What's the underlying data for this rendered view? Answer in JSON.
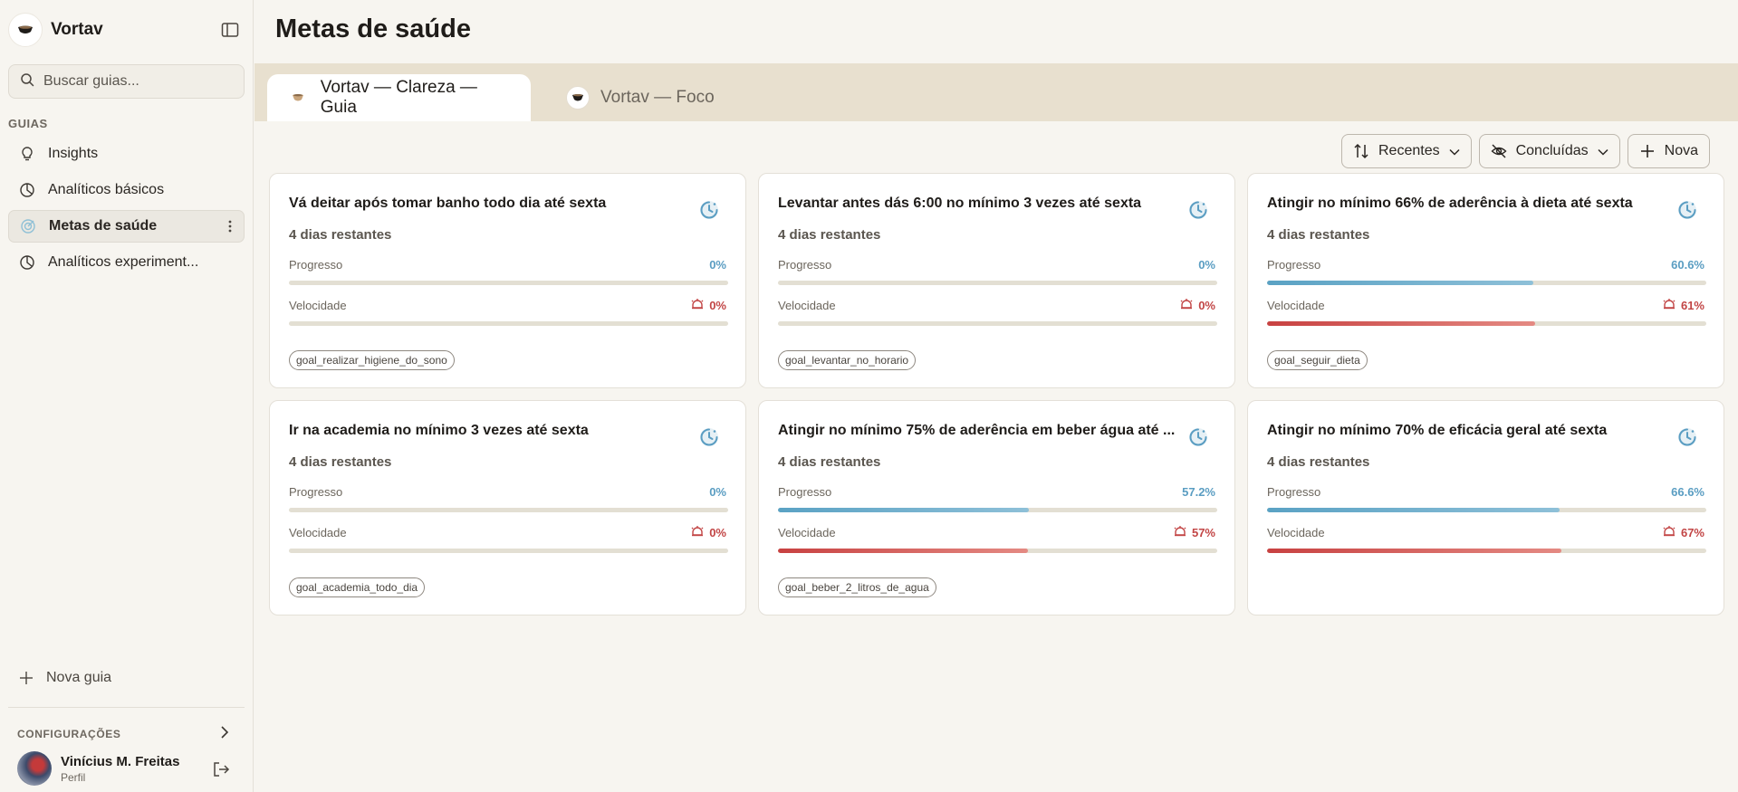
{
  "app": {
    "name": "Vortav"
  },
  "sidebar": {
    "search_placeholder": "Buscar guias...",
    "section_label": "GUIAS",
    "items": [
      {
        "label": "Insights",
        "icon": "lightbulb-icon"
      },
      {
        "label": "Analíticos básicos",
        "icon": "pie-chart-icon"
      },
      {
        "label": "Metas de saúde",
        "icon": "target-icon",
        "active": true
      },
      {
        "label": "Analíticos experiment...",
        "icon": "pie-chart-icon"
      }
    ],
    "new_guide_label": "Nova guia",
    "config_label": "CONFIGURAÇÕES",
    "profile": {
      "name": "Vinícius M. Freitas",
      "subtitle": "Perfil"
    }
  },
  "main": {
    "title": "Metas de saúde",
    "tabs": [
      {
        "label": "Vortav — Clareza — Guia",
        "active": true
      },
      {
        "label": "Vortav — Foco",
        "active": false
      }
    ],
    "toolbar": {
      "sort_label": "Recentes",
      "filter_label": "Concluídas",
      "new_label": "Nova"
    },
    "progress_label": "Progresso",
    "velocity_label": "Velocidade",
    "colors": {
      "progress": "#5a9dc2",
      "velocity": "#c24545",
      "tab_bar": "#e8e0cf"
    },
    "cards": [
      {
        "title": "Vá deitar após tomar banho todo dia até sexta",
        "days": "4 dias restantes",
        "progress": 0,
        "progress_text": "0%",
        "velocity": 0,
        "velocity_text": "0%",
        "tag": "goal_realizar_higiene_do_sono"
      },
      {
        "title": "Levantar antes dás 6:00 no mínimo 3 vezes até sexta",
        "days": "4 dias restantes",
        "progress": 0,
        "progress_text": "0%",
        "velocity": 0,
        "velocity_text": "0%",
        "tag": "goal_levantar_no_horario"
      },
      {
        "title": "Atingir no mínimo 66% de aderência à dieta até sexta",
        "days": "4 dias restantes",
        "progress": 60.6,
        "progress_text": "60.6%",
        "velocity": 61,
        "velocity_text": "61%",
        "tag": "goal_seguir_dieta"
      },
      {
        "title": "Ir na academia no mínimo 3 vezes até sexta",
        "days": "4 dias restantes",
        "progress": 0,
        "progress_text": "0%",
        "velocity": 0,
        "velocity_text": "0%",
        "tag": "goal_academia_todo_dia"
      },
      {
        "title": "Atingir no mínimo 75% de aderência em beber água até ...",
        "days": "4 dias restantes",
        "progress": 57.2,
        "progress_text": "57.2%",
        "velocity": 57,
        "velocity_text": "57%",
        "tag": "goal_beber_2_litros_de_agua"
      },
      {
        "title": "Atingir no mínimo 70% de eficácia geral até sexta",
        "days": "4 dias restantes",
        "progress": 66.6,
        "progress_text": "66.6%",
        "velocity": 67,
        "velocity_text": "67%",
        "tag": ""
      }
    ]
  }
}
